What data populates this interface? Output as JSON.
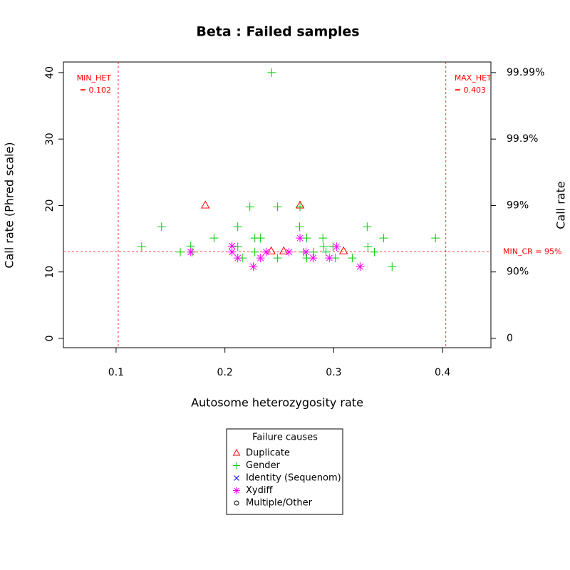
{
  "chart_data": {
    "type": "scatter",
    "title": "Beta : Failed samples",
    "xlabel": "Autosome heterozygosity rate",
    "ylabel": "Call rate (Phred scale)",
    "y2label": "Call rate",
    "xlim": [
      0.0516,
      0.4444
    ],
    "ylim": [
      -1.4,
      41.6
    ],
    "xticks": [
      0.1,
      0.2,
      0.3,
      0.4
    ],
    "yticks": [
      0,
      10,
      20,
      30,
      40
    ],
    "y2scale": "phred",
    "y2lim": [
      -38.0,
      99.99308
    ],
    "y2ticks": [
      0,
      {
        "value": 90,
        "label": "90%"
      },
      {
        "value": 99,
        "label": "99%"
      },
      {
        "value": 99.9,
        "label": "99.9%"
      },
      {
        "value": 99.99,
        "label": "99.99%"
      }
    ],
    "thresholds": [
      {
        "axis": "x",
        "label": "MIN_HET",
        "value_label": "= 0.102",
        "value": 0.102,
        "color": "#ff0000"
      },
      {
        "axis": "x",
        "label": "MAX_HET",
        "value_label": "= 0.403",
        "value": 0.403,
        "color": "#ff0000"
      },
      {
        "axis": "y2",
        "label": "MIN_CR = 95%",
        "value": 95,
        "color": "#ff0000"
      }
    ],
    "legend_title": "Failure causes",
    "legend": "bottom",
    "series": [
      {
        "name": "Duplicate",
        "color": "#ff0000",
        "marker": "triangle",
        "x": [
          0.182,
          0.269,
          0.2425,
          0.254,
          0.309
        ],
        "values": [
          20.0,
          20.0,
          13.1,
          13.1,
          13.1
        ]
      },
      {
        "name": "Gender",
        "color": "#00cd00",
        "marker": "plus",
        "x": [
          0.1235,
          0.1418,
          0.159,
          0.1686,
          0.17,
          0.19,
          0.2118,
          0.2118,
          0.216,
          0.2229,
          0.2275,
          0.2327,
          0.2275,
          0.243,
          0.2484,
          0.2484,
          0.2686,
          0.269,
          0.2725,
          0.2752,
          0.2752,
          0.2817,
          0.29,
          0.2908,
          0.2928,
          0.2993,
          0.3013,
          0.317,
          0.3307,
          0.3314,
          0.3373,
          0.3458,
          0.3536,
          0.3935
        ],
        "values": [
          13.8,
          16.8,
          13.0,
          13.9,
          13.0,
          15.1,
          16.8,
          13.8,
          12.1,
          19.8,
          15.1,
          15.1,
          13.0,
          40.0,
          19.8,
          12.1,
          16.8,
          19.8,
          13.0,
          15.1,
          12.1,
          13.0,
          15.1,
          13.8,
          13.0,
          13.8,
          12.1,
          12.1,
          16.8,
          13.8,
          13.0,
          15.1,
          10.8,
          15.1
        ]
      },
      {
        "name": "Identity (Sequenom)",
        "color": "#0000ff",
        "marker": "cross",
        "x": [],
        "values": []
      },
      {
        "name": "Xydiff",
        "color": "#ff00ff",
        "marker": "asterisk",
        "x": [
          0.1686,
          0.2065,
          0.2065,
          0.2118,
          0.2261,
          0.2327,
          0.2379,
          0.2588,
          0.269,
          0.2745,
          0.281,
          0.296,
          0.3026,
          0.3242
        ],
        "values": [
          13.0,
          13.9,
          13.0,
          12.1,
          10.8,
          12.1,
          13.0,
          13.0,
          15.1,
          13.0,
          12.1,
          12.1,
          13.8,
          10.8
        ]
      },
      {
        "name": "Multiple/Other",
        "color": "#000000",
        "marker": "circle",
        "x": [],
        "values": []
      }
    ]
  }
}
